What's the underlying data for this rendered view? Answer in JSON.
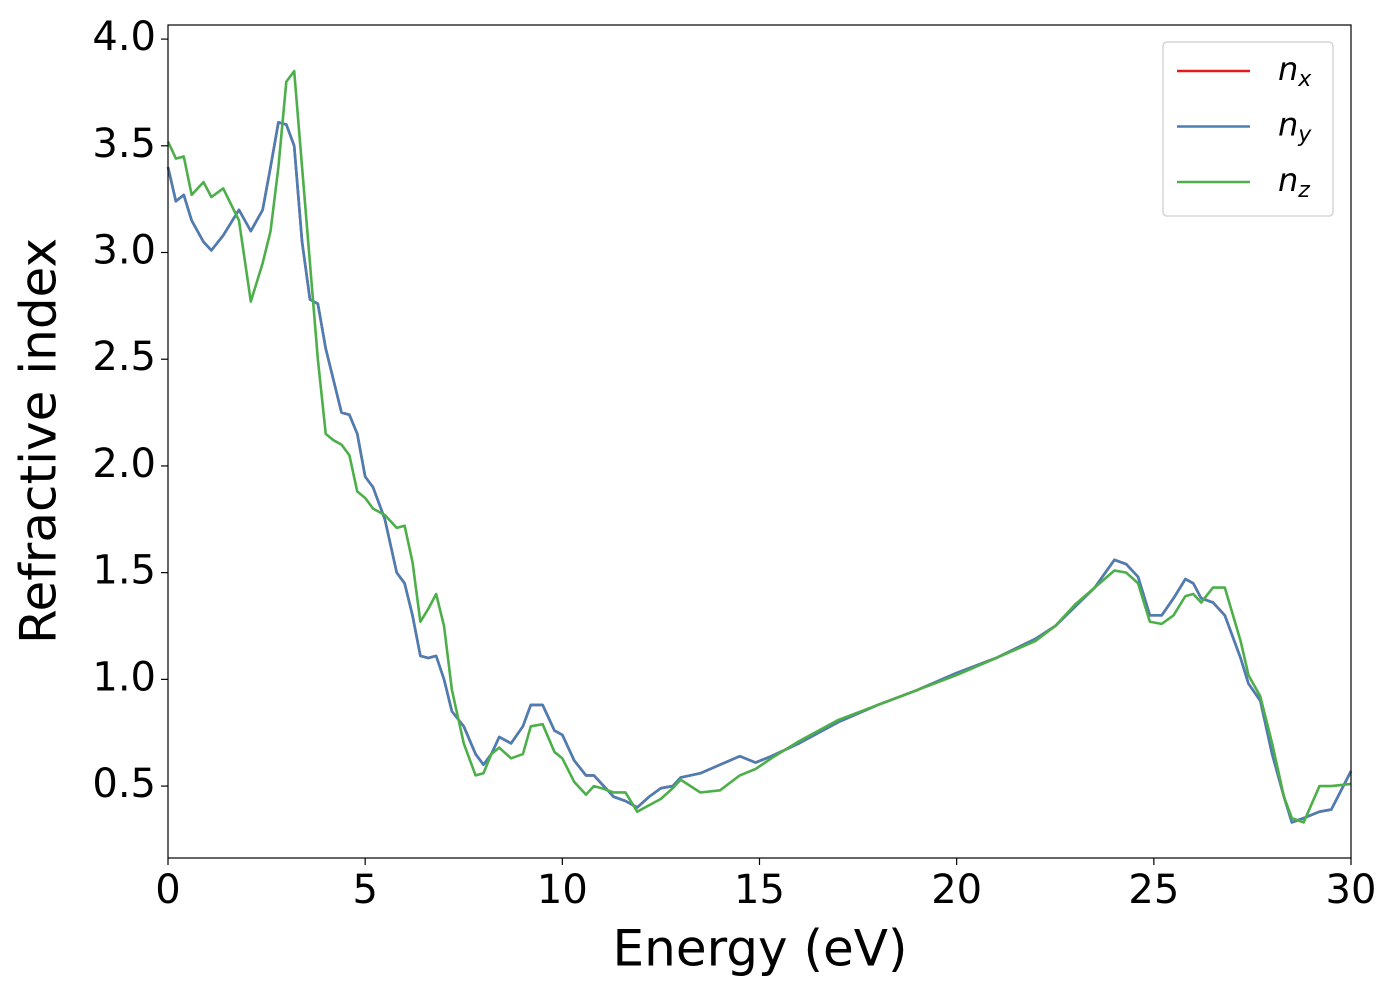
{
  "chart_data": {
    "type": "line",
    "xlabel": "Energy (eV)",
    "ylabel": "Refractive index",
    "xlim": [
      0,
      30
    ],
    "ylim": [
      0.163,
      4.066
    ],
    "xticks": [
      0,
      5,
      10,
      15,
      20,
      25,
      30
    ],
    "yticks": [
      0.5,
      {
        "value": 1,
        "label": "1.0"
      },
      1.5,
      {
        "value": 2,
        "label": "2.0"
      },
      2.5,
      {
        "value": 3,
        "label": "3.0"
      },
      3.5,
      {
        "value": 4,
        "label": "4.0"
      }
    ],
    "grid": false,
    "legend": "upper right",
    "x": [
      0,
      0.2,
      0.4,
      0.6,
      0.9,
      1.1,
      1.4,
      1.8,
      2.1,
      2.4,
      2.6,
      2.8,
      3.0,
      3.2,
      3.4,
      3.6,
      3.8,
      4.0,
      4.2,
      4.4,
      4.6,
      4.8,
      5.0,
      5.2,
      5.5,
      5.8,
      6.0,
      6.2,
      6.4,
      6.6,
      6.8,
      7.0,
      7.2,
      7.5,
      7.8,
      8.0,
      8.2,
      8.4,
      8.7,
      9.0,
      9.2,
      9.5,
      9.8,
      10.0,
      10.3,
      10.6,
      10.8,
      11.0,
      11.3,
      11.6,
      11.9,
      12.2,
      12.5,
      12.8,
      13.0,
      13.5,
      14.0,
      14.5,
      14.9,
      15.3,
      16,
      17,
      18,
      19,
      20,
      21,
      22,
      22.5,
      23,
      23.5,
      24.0,
      24.3,
      24.6,
      24.9,
      25.2,
      25.5,
      25.8,
      26.0,
      26.2,
      26.5,
      26.8,
      27.2,
      27.4,
      27.7,
      28.0,
      28.3,
      28.5,
      28.8,
      29.2,
      29.5,
      30
    ],
    "series": [
      {
        "name": "nx",
        "color": "#e41a1c",
        "values": [
          3.4,
          3.24,
          3.27,
          3.15,
          3.05,
          3.01,
          3.08,
          3.2,
          3.1,
          3.2,
          3.4,
          3.61,
          3.6,
          3.5,
          3.05,
          2.78,
          2.76,
          2.55,
          2.4,
          2.25,
          2.24,
          2.15,
          1.95,
          1.9,
          1.75,
          1.5,
          1.45,
          1.3,
          1.11,
          1.1,
          1.11,
          1.0,
          0.85,
          0.78,
          0.65,
          0.6,
          0.65,
          0.73,
          0.7,
          0.78,
          0.88,
          0.88,
          0.76,
          0.74,
          0.62,
          0.55,
          0.55,
          0.51,
          0.45,
          0.43,
          0.4,
          0.45,
          0.49,
          0.5,
          0.54,
          0.56,
          0.6,
          0.64,
          0.61,
          0.64,
          0.7,
          0.8,
          0.88,
          0.95,
          1.03,
          1.1,
          1.19,
          1.25,
          1.34,
          1.43,
          1.56,
          1.54,
          1.48,
          1.3,
          1.3,
          1.38,
          1.47,
          1.45,
          1.38,
          1.36,
          1.3,
          1.1,
          0.98,
          0.9,
          0.65,
          0.45,
          0.33,
          0.35,
          0.38,
          0.39,
          0.57
        ]
      },
      {
        "name": "ny",
        "color": "#4a7fb5",
        "values": [
          3.4,
          3.24,
          3.27,
          3.15,
          3.05,
          3.01,
          3.08,
          3.2,
          3.1,
          3.2,
          3.4,
          3.61,
          3.6,
          3.5,
          3.05,
          2.78,
          2.76,
          2.55,
          2.4,
          2.25,
          2.24,
          2.15,
          1.95,
          1.9,
          1.75,
          1.5,
          1.45,
          1.3,
          1.11,
          1.1,
          1.11,
          1.0,
          0.85,
          0.78,
          0.65,
          0.6,
          0.65,
          0.73,
          0.7,
          0.78,
          0.88,
          0.88,
          0.76,
          0.74,
          0.62,
          0.55,
          0.55,
          0.51,
          0.45,
          0.43,
          0.4,
          0.45,
          0.49,
          0.5,
          0.54,
          0.56,
          0.6,
          0.64,
          0.61,
          0.64,
          0.7,
          0.8,
          0.88,
          0.95,
          1.03,
          1.1,
          1.19,
          1.25,
          1.34,
          1.43,
          1.56,
          1.54,
          1.48,
          1.3,
          1.3,
          1.38,
          1.47,
          1.45,
          1.38,
          1.36,
          1.3,
          1.1,
          0.98,
          0.9,
          0.65,
          0.45,
          0.33,
          0.35,
          0.38,
          0.39,
          0.57
        ]
      },
      {
        "name": "nz",
        "color": "#4daf4a",
        "values": [
          3.52,
          3.44,
          3.45,
          3.27,
          3.33,
          3.26,
          3.3,
          3.15,
          2.77,
          2.95,
          3.1,
          3.4,
          3.8,
          3.85,
          3.4,
          2.95,
          2.5,
          2.15,
          2.12,
          2.1,
          2.05,
          1.88,
          1.85,
          1.8,
          1.77,
          1.71,
          1.72,
          1.55,
          1.27,
          1.33,
          1.4,
          1.25,
          0.95,
          0.7,
          0.55,
          0.56,
          0.65,
          0.68,
          0.63,
          0.65,
          0.78,
          0.79,
          0.66,
          0.63,
          0.52,
          0.46,
          0.5,
          0.49,
          0.47,
          0.47,
          0.38,
          0.41,
          0.44,
          0.49,
          0.53,
          0.47,
          0.48,
          0.55,
          0.58,
          0.63,
          0.71,
          0.81,
          0.88,
          0.95,
          1.02,
          1.1,
          1.18,
          1.25,
          1.35,
          1.43,
          1.51,
          1.5,
          1.45,
          1.27,
          1.26,
          1.3,
          1.39,
          1.4,
          1.36,
          1.43,
          1.43,
          1.18,
          1.02,
          0.92,
          0.7,
          0.45,
          0.35,
          0.33,
          0.5,
          0.5,
          0.51
        ]
      }
    ]
  }
}
